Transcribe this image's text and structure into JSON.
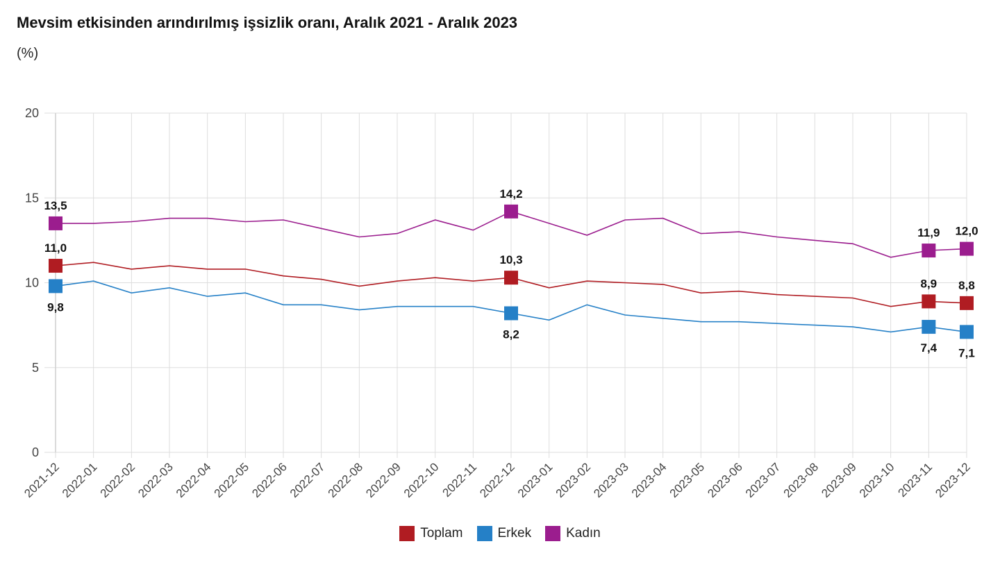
{
  "header": {
    "title": "Mevsim etkisinden arındırılmış işsizlik oranı, Aralık 2021 - Aralık 2023",
    "unit": "(%)"
  },
  "colors": {
    "Toplam": "#b01c22",
    "Erkek": "#2580c7",
    "Kadın": "#9b1d8e",
    "grid": "#dddddd"
  },
  "chart_data": {
    "type": "line",
    "title": "Mevsim etkisinden arındırılmış işsizlik oranı, Aralık 2021 - Aralık 2023",
    "ylabel": "(%)",
    "xlabel": "",
    "ylim": [
      0,
      20
    ],
    "yticks": [
      0,
      5,
      10,
      15,
      20
    ],
    "grid": true,
    "legend": "bottom-center",
    "categories": [
      "2021-12",
      "2022-01",
      "2022-02",
      "2022-03",
      "2022-04",
      "2022-05",
      "2022-06",
      "2022-07",
      "2022-08",
      "2022-09",
      "2022-10",
      "2022-11",
      "2022-12",
      "2023-01",
      "2023-02",
      "2023-03",
      "2023-04",
      "2023-05",
      "2023-06",
      "2023-07",
      "2023-08",
      "2023-09",
      "2023-10",
      "2023-11",
      "2023-12"
    ],
    "series": [
      {
        "name": "Toplam",
        "color": "#b01c22",
        "values": [
          11.0,
          11.2,
          10.8,
          11.0,
          10.8,
          10.8,
          10.4,
          10.2,
          9.8,
          10.1,
          10.3,
          10.1,
          10.3,
          9.7,
          10.1,
          10.0,
          9.9,
          9.4,
          9.5,
          9.3,
          9.2,
          9.1,
          8.6,
          8.9,
          8.8
        ],
        "labels": [
          {
            "index": 0,
            "text": "11,0",
            "pos": "above"
          },
          {
            "index": 12,
            "text": "10,3",
            "pos": "above"
          },
          {
            "index": 23,
            "text": "8,9",
            "pos": "above"
          },
          {
            "index": 24,
            "text": "8,8",
            "pos": "above"
          }
        ]
      },
      {
        "name": "Erkek",
        "color": "#2580c7",
        "values": [
          9.8,
          10.1,
          9.4,
          9.7,
          9.2,
          9.4,
          8.7,
          8.7,
          8.4,
          8.6,
          8.6,
          8.6,
          8.2,
          7.8,
          8.7,
          8.1,
          7.9,
          7.7,
          7.7,
          7.6,
          7.5,
          7.4,
          7.1,
          7.4,
          7.1
        ],
        "labels": [
          {
            "index": 0,
            "text": "9,8",
            "pos": "below"
          },
          {
            "index": 12,
            "text": "8,2",
            "pos": "below"
          },
          {
            "index": 23,
            "text": "7,4",
            "pos": "below"
          },
          {
            "index": 24,
            "text": "7,1",
            "pos": "below"
          }
        ]
      },
      {
        "name": "Kadın",
        "color": "#9b1d8e",
        "values": [
          13.5,
          13.5,
          13.6,
          13.8,
          13.8,
          13.6,
          13.7,
          13.2,
          12.7,
          12.9,
          13.7,
          13.1,
          14.2,
          13.5,
          12.8,
          13.7,
          13.8,
          12.9,
          13.0,
          12.7,
          12.5,
          12.3,
          11.5,
          11.9,
          12.0
        ],
        "labels": [
          {
            "index": 0,
            "text": "13,5",
            "pos": "above"
          },
          {
            "index": 12,
            "text": "14,2",
            "pos": "above"
          },
          {
            "index": 23,
            "text": "11,9",
            "pos": "above"
          },
          {
            "index": 24,
            "text": "12,0",
            "pos": "above"
          }
        ]
      }
    ]
  },
  "legend": {
    "items": [
      {
        "label": "Toplam",
        "color": "#b01c22"
      },
      {
        "label": "Erkek",
        "color": "#2580c7"
      },
      {
        "label": "Kadın",
        "color": "#9b1d8e"
      }
    ]
  }
}
